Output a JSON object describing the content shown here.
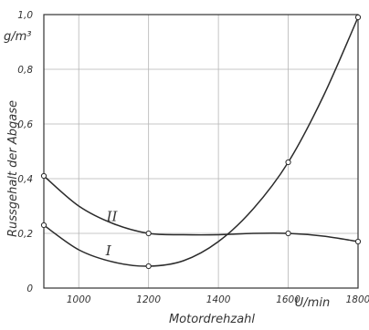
{
  "chart_data": {
    "type": "line",
    "title": "",
    "xlabel": "Motordrehzahl",
    "ylabel": "Russgehalt der Abgase",
    "y_unit": "g/m³",
    "x_unit": "U/min",
    "xlim": [
      900,
      1800
    ],
    "ylim": [
      0,
      1.0
    ],
    "x_ticks": [
      "1000",
      "1200",
      "1400",
      "1600",
      "1800"
    ],
    "y_ticks": [
      "0",
      "0,2",
      "0,4",
      "0,6",
      "0,8",
      "1,0"
    ],
    "grid": true,
    "series": [
      {
        "name": "I",
        "x": [
          900,
          1200,
          1600,
          1800
        ],
        "y": [
          0.23,
          0.08,
          0.46,
          0.99
        ],
        "curve": [
          [
            900,
            0.23
          ],
          [
            1000,
            0.14
          ],
          [
            1100,
            0.095
          ],
          [
            1200,
            0.08
          ],
          [
            1300,
            0.1
          ],
          [
            1400,
            0.17
          ],
          [
            1500,
            0.29
          ],
          [
            1600,
            0.46
          ],
          [
            1700,
            0.7
          ],
          [
            1800,
            0.99
          ]
        ]
      },
      {
        "name": "II",
        "x": [
          900,
          1200,
          1600,
          1800
        ],
        "y": [
          0.41,
          0.2,
          0.2,
          0.17
        ],
        "curve": [
          [
            900,
            0.41
          ],
          [
            1000,
            0.3
          ],
          [
            1100,
            0.235
          ],
          [
            1200,
            0.2
          ],
          [
            1300,
            0.195
          ],
          [
            1400,
            0.195
          ],
          [
            1500,
            0.2
          ],
          [
            1600,
            0.2
          ],
          [
            1700,
            0.19
          ],
          [
            1800,
            0.17
          ]
        ]
      }
    ]
  }
}
